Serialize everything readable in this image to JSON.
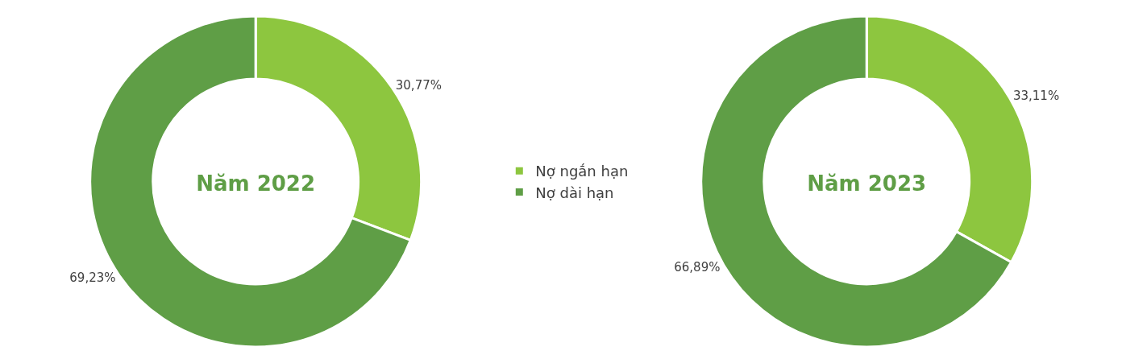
{
  "chart_data": [
    {
      "type": "donut",
      "title": "Năm 2022",
      "categories": [
        "Nợ ngắn hạn",
        "Nợ dài hạn"
      ],
      "values": [
        30.77,
        69.23
      ],
      "colors": [
        "#8dc63f",
        "#5f9e46"
      ],
      "value_labels": [
        "30,77%",
        "69,23%"
      ],
      "legend": "right"
    },
    {
      "type": "donut",
      "title": "Năm 2023",
      "categories": [
        null,
        null
      ],
      "values": [
        33.11,
        66.89
      ],
      "colors": [
        "#8dc63f",
        "#5f9e46"
      ],
      "value_labels": [
        "33,11%",
        "66,89%"
      ]
    }
  ]
}
